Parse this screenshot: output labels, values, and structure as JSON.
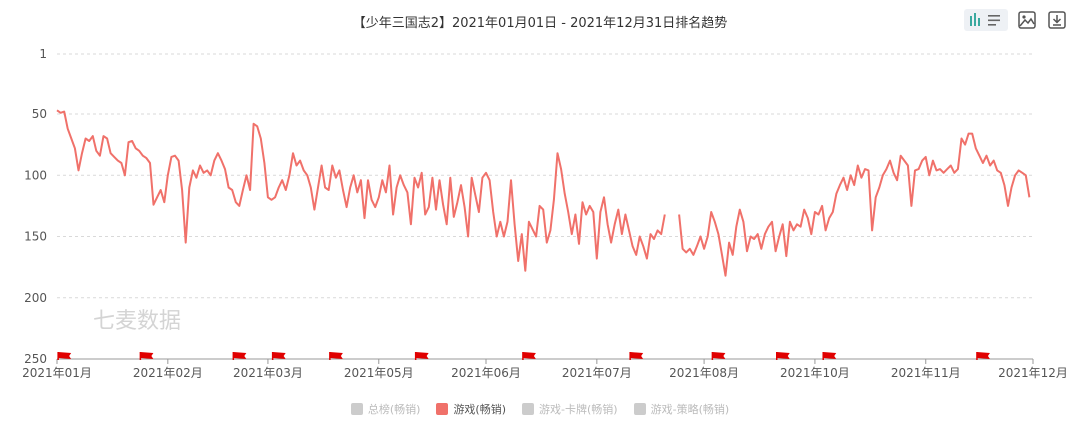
{
  "title": "【少年三国志2】2021年01月01日 - 2021年12月31日排名趋势",
  "watermark": "七麦数据",
  "toolbar": {
    "icons": [
      "chart-type-icon",
      "save-image-icon",
      "download-icon"
    ]
  },
  "colors": {
    "series": "#f0716a",
    "grid": "#d9d9d9",
    "axis": "#999999",
    "flag": "#e00000",
    "inactive": "#cccccc"
  },
  "legend": [
    {
      "label": "总榜(畅销)",
      "active": false
    },
    {
      "label": "游戏(畅销)",
      "active": true
    },
    {
      "label": "游戏-卡牌(畅销)",
      "active": false
    },
    {
      "label": "游戏-策略(畅销)",
      "active": false
    }
  ],
  "chart_data": {
    "type": "line",
    "y_inverted": true,
    "ylim": [
      1,
      250
    ],
    "y_ticks": [
      1,
      50,
      100,
      150,
      200,
      250
    ],
    "x_ticks": [
      {
        "label": "2021年01月",
        "day": 0
      },
      {
        "label": "2021年02月",
        "day": 31
      },
      {
        "label": "2021年03月",
        "day": 59
      },
      {
        "label": "2021年05月",
        "day": 90
      },
      {
        "label": "2021年06月",
        "day": 120
      },
      {
        "label": "2021年07月",
        "day": 151
      },
      {
        "label": "2021年08月",
        "day": 181
      },
      {
        "label": "2021年10月",
        "day": 212
      },
      {
        "label": "2021年11月",
        "day": 243
      },
      {
        "label": "2021年12月",
        "day": 273
      }
    ],
    "x_range_days": [
      0,
      273
    ],
    "flag_days": [
      2,
      25,
      51,
      62,
      78,
      102,
      132,
      162,
      185,
      203,
      216,
      259
    ],
    "series": [
      {
        "name": "游戏(畅销)",
        "values": [
          [
            0,
            47
          ],
          [
            1,
            49
          ],
          [
            2,
            48
          ],
          [
            3,
            62
          ],
          [
            4,
            70
          ],
          [
            5,
            78
          ],
          [
            6,
            96
          ],
          [
            7,
            82
          ],
          [
            8,
            70
          ],
          [
            9,
            72
          ],
          [
            10,
            68
          ],
          [
            11,
            80
          ],
          [
            12,
            84
          ],
          [
            13,
            68
          ],
          [
            14,
            70
          ],
          [
            15,
            82
          ],
          [
            16,
            85
          ],
          [
            17,
            88
          ],
          [
            18,
            90
          ],
          [
            19,
            100
          ],
          [
            20,
            73
          ],
          [
            21,
            72
          ],
          [
            22,
            78
          ],
          [
            23,
            80
          ],
          [
            24,
            84
          ],
          [
            25,
            86
          ],
          [
            26,
            90
          ],
          [
            27,
            124
          ],
          [
            28,
            118
          ],
          [
            29,
            112
          ],
          [
            30,
            122
          ],
          [
            31,
            100
          ],
          [
            32,
            85
          ],
          [
            33,
            84
          ],
          [
            34,
            88
          ],
          [
            35,
            112
          ],
          [
            36,
            155
          ],
          [
            37,
            110
          ],
          [
            38,
            96
          ],
          [
            39,
            102
          ],
          [
            40,
            92
          ],
          [
            41,
            98
          ],
          [
            42,
            96
          ],
          [
            43,
            100
          ],
          [
            44,
            88
          ],
          [
            45,
            82
          ],
          [
            46,
            88
          ],
          [
            47,
            95
          ],
          [
            48,
            110
          ],
          [
            49,
            112
          ],
          [
            50,
            122
          ],
          [
            51,
            125
          ],
          [
            52,
            112
          ],
          [
            53,
            100
          ],
          [
            54,
            112
          ],
          [
            55,
            58
          ],
          [
            56,
            60
          ],
          [
            57,
            70
          ],
          [
            58,
            90
          ],
          [
            59,
            118
          ],
          [
            60,
            120
          ],
          [
            61,
            118
          ],
          [
            62,
            110
          ],
          [
            63,
            104
          ],
          [
            64,
            112
          ],
          [
            65,
            100
          ],
          [
            66,
            82
          ],
          [
            67,
            92
          ],
          [
            68,
            88
          ],
          [
            69,
            96
          ],
          [
            70,
            100
          ],
          [
            71,
            110
          ],
          [
            72,
            128
          ],
          [
            73,
            110
          ],
          [
            74,
            92
          ],
          [
            75,
            110
          ],
          [
            76,
            112
          ],
          [
            77,
            92
          ],
          [
            78,
            102
          ],
          [
            79,
            96
          ],
          [
            80,
            112
          ],
          [
            81,
            126
          ],
          [
            82,
            110
          ],
          [
            83,
            100
          ],
          [
            84,
            114
          ],
          [
            85,
            104
          ],
          [
            86,
            135
          ],
          [
            87,
            104
          ],
          [
            88,
            120
          ],
          [
            89,
            126
          ],
          [
            90,
            118
          ],
          [
            91,
            104
          ],
          [
            92,
            114
          ],
          [
            93,
            92
          ],
          [
            94,
            132
          ],
          [
            95,
            110
          ],
          [
            96,
            100
          ],
          [
            97,
            108
          ],
          [
            98,
            114
          ],
          [
            99,
            140
          ],
          [
            100,
            102
          ],
          [
            101,
            110
          ],
          [
            102,
            98
          ],
          [
            103,
            132
          ],
          [
            104,
            126
          ],
          [
            105,
            102
          ],
          [
            106,
            128
          ],
          [
            107,
            104
          ],
          [
            108,
            124
          ],
          [
            109,
            140
          ],
          [
            110,
            102
          ],
          [
            111,
            134
          ],
          [
            112,
            122
          ],
          [
            113,
            108
          ],
          [
            114,
            126
          ],
          [
            115,
            150
          ],
          [
            116,
            102
          ],
          [
            117,
            116
          ],
          [
            118,
            130
          ],
          [
            119,
            102
          ],
          [
            120,
            98
          ],
          [
            121,
            104
          ],
          [
            122,
            130
          ],
          [
            123,
            150
          ],
          [
            124,
            138
          ],
          [
            125,
            150
          ],
          [
            126,
            138
          ],
          [
            127,
            104
          ],
          [
            128,
            140
          ],
          [
            129,
            170
          ],
          [
            130,
            148
          ],
          [
            131,
            178
          ],
          [
            132,
            138
          ],
          [
            133,
            144
          ],
          [
            134,
            150
          ],
          [
            135,
            125
          ],
          [
            136,
            128
          ],
          [
            137,
            155
          ],
          [
            138,
            145
          ],
          [
            139,
            120
          ],
          [
            140,
            82
          ],
          [
            141,
            95
          ],
          [
            142,
            115
          ],
          [
            143,
            130
          ],
          [
            144,
            148
          ],
          [
            145,
            132
          ],
          [
            146,
            156
          ],
          [
            147,
            122
          ],
          [
            148,
            132
          ],
          [
            149,
            125
          ],
          [
            150,
            130
          ],
          [
            151,
            168
          ],
          [
            152,
            130
          ],
          [
            153,
            118
          ],
          [
            154,
            140
          ],
          [
            155,
            155
          ],
          [
            156,
            140
          ],
          [
            157,
            128
          ],
          [
            158,
            148
          ],
          [
            159,
            132
          ],
          [
            160,
            145
          ],
          [
            161,
            158
          ],
          [
            162,
            165
          ],
          [
            163,
            150
          ],
          [
            164,
            158
          ],
          [
            165,
            168
          ],
          [
            166,
            148
          ],
          [
            167,
            152
          ],
          [
            168,
            145
          ],
          [
            169,
            148
          ],
          [
            170,
            132
          ]
        ]
      },
      {
        "name": "游戏(畅销)",
        "values": [
          [
            174,
            132
          ],
          [
            175,
            160
          ],
          [
            176,
            163
          ],
          [
            177,
            160
          ],
          [
            178,
            165
          ],
          [
            179,
            158
          ],
          [
            180,
            150
          ],
          [
            181,
            160
          ],
          [
            182,
            150
          ],
          [
            183,
            130
          ],
          [
            184,
            138
          ],
          [
            185,
            148
          ],
          [
            186,
            165
          ],
          [
            187,
            182
          ],
          [
            188,
            155
          ],
          [
            189,
            165
          ],
          [
            190,
            142
          ],
          [
            191,
            128
          ],
          [
            192,
            138
          ],
          [
            193,
            162
          ],
          [
            194,
            150
          ],
          [
            195,
            152
          ],
          [
            196,
            148
          ],
          [
            197,
            160
          ],
          [
            198,
            148
          ],
          [
            199,
            142
          ],
          [
            200,
            138
          ],
          [
            201,
            162
          ],
          [
            202,
            150
          ],
          [
            203,
            140
          ],
          [
            204,
            166
          ],
          [
            205,
            138
          ],
          [
            206,
            145
          ],
          [
            207,
            140
          ],
          [
            208,
            142
          ],
          [
            209,
            128
          ],
          [
            210,
            135
          ],
          [
            211,
            148
          ],
          [
            212,
            130
          ],
          [
            213,
            132
          ],
          [
            214,
            125
          ],
          [
            215,
            145
          ],
          [
            216,
            135
          ],
          [
            217,
            130
          ],
          [
            218,
            115
          ],
          [
            219,
            108
          ],
          [
            220,
            102
          ],
          [
            221,
            112
          ],
          [
            222,
            100
          ],
          [
            223,
            108
          ],
          [
            224,
            92
          ],
          [
            225,
            102
          ],
          [
            226,
            95
          ],
          [
            227,
            96
          ],
          [
            228,
            145
          ],
          [
            229,
            118
          ],
          [
            230,
            110
          ],
          [
            231,
            100
          ],
          [
            232,
            95
          ],
          [
            233,
            88
          ],
          [
            234,
            98
          ],
          [
            235,
            104
          ],
          [
            236,
            84
          ],
          [
            237,
            88
          ],
          [
            238,
            92
          ],
          [
            239,
            125
          ],
          [
            240,
            96
          ],
          [
            241,
            95
          ],
          [
            242,
            88
          ],
          [
            243,
            85
          ],
          [
            244,
            100
          ],
          [
            245,
            88
          ],
          [
            246,
            96
          ],
          [
            247,
            95
          ],
          [
            248,
            98
          ],
          [
            249,
            95
          ],
          [
            250,
            92
          ],
          [
            251,
            98
          ],
          [
            252,
            95
          ],
          [
            253,
            70
          ],
          [
            254,
            75
          ],
          [
            255,
            66
          ],
          [
            256,
            66
          ],
          [
            257,
            78
          ],
          [
            258,
            84
          ],
          [
            259,
            90
          ],
          [
            260,
            84
          ],
          [
            261,
            92
          ],
          [
            262,
            88
          ],
          [
            263,
            96
          ],
          [
            264,
            98
          ],
          [
            265,
            108
          ],
          [
            266,
            125
          ],
          [
            267,
            110
          ],
          [
            268,
            100
          ],
          [
            269,
            96
          ],
          [
            270,
            98
          ],
          [
            271,
            100
          ],
          [
            272,
            118
          ]
        ]
      }
    ]
  }
}
